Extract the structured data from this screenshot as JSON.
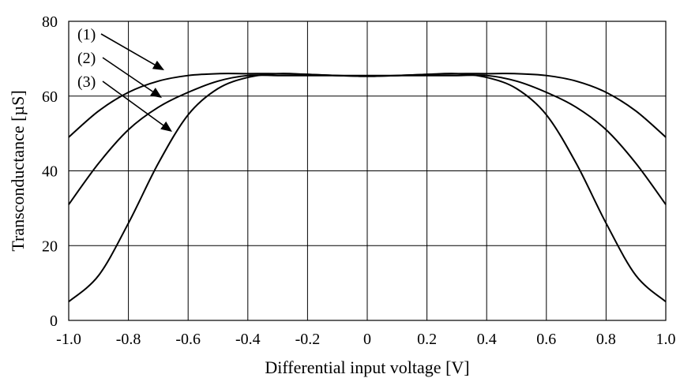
{
  "chart_data": {
    "type": "line",
    "title": "",
    "xlabel": "Differential input voltage [V]",
    "ylabel": "Transconductance [µS]",
    "xlim": [
      -1.0,
      1.0
    ],
    "ylim": [
      0,
      80
    ],
    "x_ticks": [
      "-1.0",
      "-0.8",
      "-0.6",
      "-0.4",
      "-0.2",
      "0",
      "0.2",
      "0.4",
      "0.6",
      "0.8",
      "1.0"
    ],
    "y_ticks": [
      "0",
      "20",
      "40",
      "60",
      "80"
    ],
    "grid": true,
    "x": [
      -1.0,
      -0.9,
      -0.8,
      -0.7,
      -0.6,
      -0.5,
      -0.4,
      -0.3,
      -0.2,
      -0.1,
      0.0,
      0.1,
      0.2,
      0.3,
      0.4,
      0.5,
      0.6,
      0.7,
      0.8,
      0.9,
      1.0
    ],
    "series": [
      {
        "name": "(1)",
        "values": [
          49,
          56,
          61,
          64,
          65.5,
          66,
          66,
          66,
          65.8,
          65.5,
          65.3,
          65.5,
          65.8,
          66,
          66,
          66,
          65.5,
          64,
          61,
          56,
          49
        ]
      },
      {
        "name": "(2)",
        "values": [
          31,
          42,
          51,
          57,
          61,
          64,
          65.5,
          65.5,
          65.5,
          65.5,
          65.5,
          65.5,
          65.5,
          65.5,
          65.5,
          64,
          61,
          57,
          51,
          42,
          31
        ]
      },
      {
        "name": "(3)",
        "values": [
          5,
          12,
          26,
          42,
          55,
          62,
          65,
          66,
          65.8,
          65.5,
          65.3,
          65.5,
          65.8,
          66,
          65,
          62,
          55,
          42,
          26,
          12,
          5
        ]
      }
    ],
    "colors": {
      "curve": "#000000",
      "grid": "#000000",
      "background": "#ffffff"
    }
  }
}
